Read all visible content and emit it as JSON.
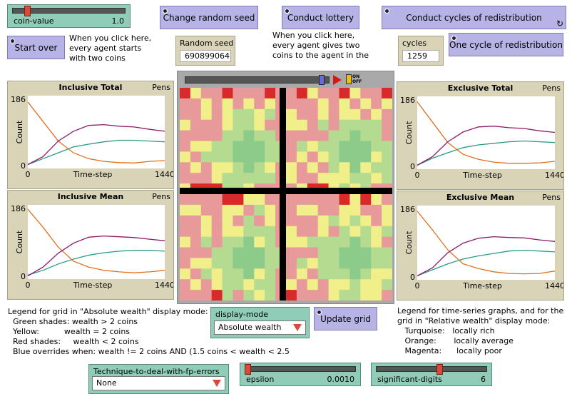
{
  "sliders": {
    "coin_value": {
      "label": "coin-value",
      "value": "1.0",
      "fraction": 0.08
    },
    "epsilon": {
      "label": "epsilon",
      "value": "0.0010",
      "fraction": 0.0
    },
    "significant_digits": {
      "label": "significant-digits",
      "value": "6",
      "fraction": 0.6
    }
  },
  "buttons": {
    "start_over": "Start over",
    "change_seed": "Change random seed",
    "conduct_lottery": "Conduct lottery",
    "cycles_repeat": "Conduct cycles of redistribution repeatedly",
    "one_cycle": "One cycle of redistribution",
    "update_grid": "Update grid"
  },
  "notes": {
    "start_over": "When you click here,\nevery agent starts\nwith two coins",
    "lottery": "When you click here,\nevery agent gives two\ncoins to the agent in the",
    "legend_abs": "Legend for grid in \"Absolute wealth\" display mode:\n  Green shades: wealth > 2 coins\n  Yellow:          wealth = 2 coins\n  Red shades:     wealth < 2 coins\n  Blue overrides when: wealth != 2 coins AND (1.5 coins < wealth < 2.5",
    "legend_ts": "Legend for time-series graphs, and for the\ngrid in \"Relative wealth\" display mode:\n   Turquoise:   locally rich\n   Orange:       locally average\n   Magenta:      locally poor"
  },
  "monitors": {
    "random_seed": {
      "label": "Random seed",
      "value": "690899064"
    },
    "cycles": {
      "label": "cycles",
      "value": "1259"
    }
  },
  "choosers": {
    "display_mode": {
      "label": "display-mode",
      "value": "Absolute wealth"
    },
    "fp_technique": {
      "label": "Technique-to-deal-with-fp-errors",
      "value": "None"
    }
  },
  "view": {
    "speed_fraction": 0.97,
    "toggle": "ON OFF"
  },
  "plot_common": {
    "pens": "Pens",
    "ymin": "0",
    "ymax": "186",
    "xmin": "0",
    "xmax": "1440",
    "xlabel": "Time-step",
    "ylabel": "Count"
  },
  "colors": {
    "turquoise": "#2a9a82",
    "orange": "#e0701e",
    "magenta": "#8c1a6c"
  },
  "chart_data": [
    {
      "type": "line",
      "title": "Inclusive Total",
      "xlabel": "Time-step",
      "ylabel": "Count",
      "xlim": [
        0,
        1440
      ],
      "ylim": [
        0,
        186
      ],
      "series": [
        {
          "values": [
            10,
            25,
            40,
            55,
            62,
            68,
            72,
            72,
            70,
            68
          ]
        },
        {
          "values": [
            170,
            120,
            70,
            40,
            25,
            18,
            15,
            14,
            18,
            20
          ]
        },
        {
          "values": [
            10,
            30,
            70,
            95,
            110,
            112,
            108,
            106,
            100,
            95
          ]
        }
      ]
    },
    {
      "type": "line",
      "title": "Inclusive Mean",
      "xlabel": "Time-step",
      "ylabel": "Count",
      "xlim": [
        0,
        1440
      ],
      "ylim": [
        0,
        186
      ],
      "series": [
        {
          "values": [
            10,
            22,
            38,
            50,
            60,
            66,
            70,
            72,
            72,
            70
          ]
        },
        {
          "values": [
            175,
            130,
            80,
            45,
            30,
            22,
            18,
            16,
            18,
            22
          ]
        },
        {
          "values": [
            8,
            30,
            65,
            90,
            105,
            108,
            106,
            104,
            100,
            96
          ]
        }
      ]
    },
    {
      "type": "line",
      "title": "Exclusive Total",
      "xlabel": "Time-step",
      "ylabel": "Count",
      "xlim": [
        0,
        1440
      ],
      "ylim": [
        0,
        186
      ],
      "series": [
        {
          "values": [
            10,
            28,
            42,
            55,
            62,
            66,
            70,
            72,
            70,
            68
          ]
        },
        {
          "values": [
            172,
            120,
            68,
            38,
            25,
            18,
            15,
            15,
            16,
            20
          ]
        },
        {
          "values": [
            10,
            32,
            70,
            95,
            108,
            110,
            106,
            104,
            98,
            94
          ]
        }
      ]
    },
    {
      "type": "line",
      "title": "Exclusive Mean",
      "xlabel": "Time-step",
      "ylabel": "Count",
      "xlim": [
        0,
        1440
      ],
      "ylim": [
        0,
        186
      ],
      "series": [
        {
          "values": [
            10,
            25,
            40,
            52,
            60,
            66,
            72,
            74,
            72,
            70
          ]
        },
        {
          "values": [
            172,
            125,
            75,
            40,
            28,
            20,
            16,
            15,
            16,
            22
          ]
        },
        {
          "values": [
            10,
            30,
            68,
            92,
            104,
            108,
            106,
            105,
            100,
            96
          ]
        }
      ]
    }
  ]
}
